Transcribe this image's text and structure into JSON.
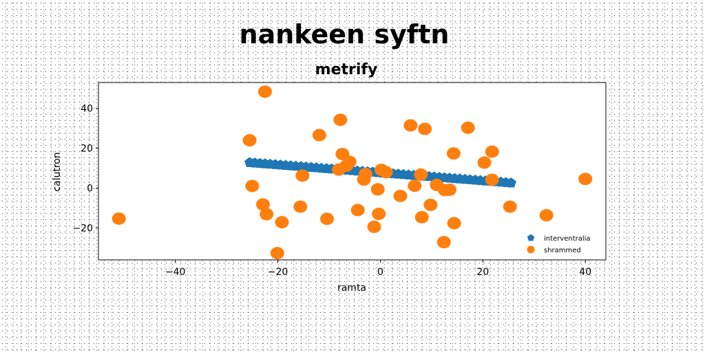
{
  "chart_data": {
    "type": "scatter",
    "title": "nankeen syftn",
    "subtitle": "metrify",
    "xlabel": "ramta",
    "ylabel": "calutron",
    "xlim": [
      -55,
      44
    ],
    "ylim": [
      -36,
      53
    ],
    "xticks": [
      -40,
      -20,
      0,
      20,
      40
    ],
    "yticks": [
      -20,
      0,
      20,
      40
    ],
    "legend_position": "lower-right",
    "series": [
      {
        "name": "interventralia",
        "color": "#1f77b4",
        "marker": "pentagon",
        "x": [
          -25.5,
          -24.5,
          -23.5,
          -22.5,
          -21.5,
          -20.5,
          -19.5,
          -18.5,
          -17.5,
          -16.5,
          -15.5,
          -14.5,
          -13.5,
          -12.5,
          -11.5,
          -10.5,
          -9.5,
          -8.5,
          -7.5,
          -6.5,
          -5.5,
          -4.5,
          -3.5,
          -2.5,
          -1.5,
          -0.5,
          0.5,
          1.5,
          2.5,
          3.5,
          4.5,
          5.5,
          6.5,
          7.5,
          8.5,
          9.5,
          10.5,
          11.5,
          12.5,
          13.5,
          14.5,
          15.5,
          16.5,
          17.5,
          18.5,
          19.5,
          20.5,
          21.5,
          22.5,
          23.5,
          24.5,
          25.5
        ],
        "y": [
          12.8,
          12.6,
          12.4,
          12.2,
          12.0,
          11.8,
          11.6,
          11.4,
          11.2,
          11.0,
          10.8,
          10.6,
          10.4,
          10.2,
          10.0,
          9.8,
          9.6,
          9.4,
          9.2,
          9.0,
          8.8,
          8.6,
          8.4,
          8.2,
          8.0,
          7.8,
          7.6,
          7.4,
          7.2,
          7.0,
          6.8,
          6.6,
          6.4,
          6.2,
          6.0,
          5.8,
          5.6,
          5.4,
          5.2,
          5.0,
          4.8,
          4.6,
          4.4,
          4.2,
          4.0,
          3.8,
          3.6,
          3.4,
          3.2,
          3.0,
          2.8,
          2.6
        ]
      },
      {
        "name": "shrammed",
        "color": "#ff7f0e",
        "marker": "circle",
        "x": [
          -22.5,
          -25.5,
          -7.8,
          5.9,
          8.7,
          17.1,
          -11.9,
          14.3,
          21.8,
          -7.4,
          20.3,
          -6.0,
          -6.6,
          -8.1,
          0.2,
          7.9,
          -2.9,
          1.1,
          -15.2,
          21.8,
          -25.0,
          -3.2,
          6.7,
          11.0,
          13.5,
          12.6,
          40.0,
          -0.5,
          3.9,
          -22.9,
          -15.6,
          9.8,
          -4.4,
          -22.2,
          25.3,
          32.4,
          -0.3,
          8.1,
          -10.4,
          -51.0,
          -19.2,
          14.4,
          -1.2,
          12.4,
          -20.1
        ],
        "y": [
          48.4,
          24.0,
          34.3,
          31.5,
          29.7,
          30.3,
          26.6,
          17.4,
          18.3,
          17.1,
          12.8,
          13.2,
          11.3,
          9.3,
          9.2,
          6.8,
          7.1,
          8.0,
          6.3,
          4.2,
          1.1,
          4.3,
          1.2,
          1.6,
          -0.8,
          -1.0,
          4.6,
          -0.6,
          -3.9,
          -8.2,
          -9.3,
          -8.4,
          -11.0,
          -13.1,
          -9.3,
          -13.6,
          -12.9,
          -14.6,
          -15.4,
          -15.3,
          -17.1,
          -17.6,
          -19.4,
          -27.1,
          -32.6
        ]
      }
    ]
  }
}
